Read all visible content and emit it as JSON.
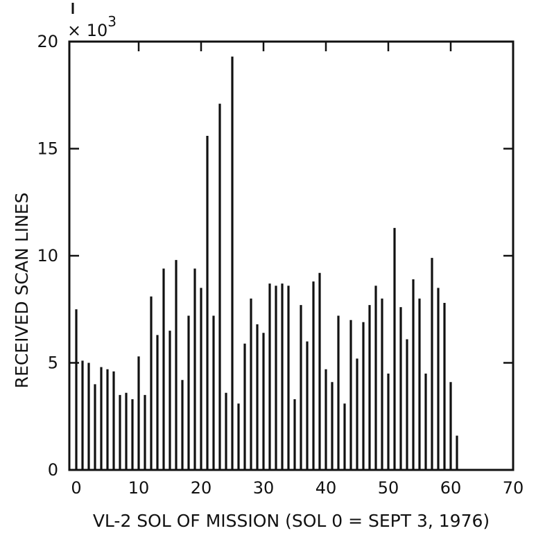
{
  "chart_data": {
    "type": "bar",
    "xlabel": "VL-2 SOL OF MISSION (SOL 0 = SEPT 3, 1976)",
    "ylabel": "RECEIVED SCAN LINES",
    "y_multiplier": "× 10",
    "y_multiplier_exponent": "3",
    "xlim": [
      0,
      70
    ],
    "ylim": [
      0,
      20
    ],
    "x_ticks": [
      "0",
      "10",
      "20",
      "30",
      "40",
      "50",
      "60",
      "70"
    ],
    "y_ticks": [
      "0",
      "5",
      "10",
      "15",
      "20"
    ],
    "x": [
      0,
      1,
      2,
      3,
      4,
      5,
      6,
      7,
      8,
      9,
      10,
      11,
      12,
      13,
      14,
      15,
      16,
      17,
      18,
      19,
      20,
      21,
      22,
      23,
      24,
      25,
      26,
      27,
      28,
      29,
      30,
      31,
      32,
      33,
      34,
      35,
      36,
      37,
      38,
      39,
      40,
      41,
      42,
      43,
      44,
      45,
      46,
      47,
      48,
      49,
      50,
      51,
      52,
      53,
      54,
      55,
      56,
      57,
      58,
      59,
      60,
      61
    ],
    "values": [
      7.5,
      5.1,
      5.0,
      4.0,
      4.8,
      4.7,
      4.6,
      3.5,
      3.6,
      3.3,
      5.3,
      3.5,
      8.1,
      6.3,
      9.4,
      6.5,
      9.8,
      4.2,
      7.2,
      9.4,
      8.5,
      15.6,
      7.2,
      17.1,
      3.6,
      19.3,
      3.1,
      5.9,
      8.0,
      6.8,
      6.4,
      8.7,
      8.6,
      8.7,
      8.6,
      3.3,
      7.7,
      6.0,
      8.8,
      9.2,
      4.7,
      4.1,
      7.2,
      3.1,
      7.0,
      5.2,
      6.9,
      7.7,
      8.6,
      8.0,
      4.5,
      11.3,
      7.6,
      6.1,
      8.9,
      8.0,
      4.5,
      9.9,
      8.5,
      7.8,
      4.1,
      1.6
    ]
  }
}
